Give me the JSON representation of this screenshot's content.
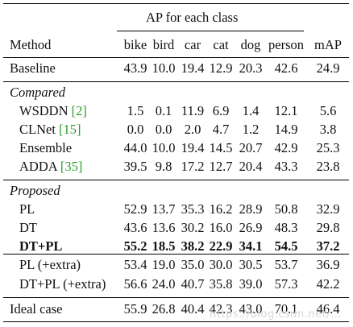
{
  "header": {
    "group_label": "AP for each class",
    "method_label": "Method",
    "columns": [
      "bike",
      "bird",
      "car",
      "cat",
      "dog",
      "person",
      "mAP"
    ]
  },
  "rows": [
    {
      "method": "Baseline",
      "values": [
        "43.9",
        "10.0",
        "19.4",
        "12.9",
        "20.3",
        "42.6",
        "24.9"
      ]
    },
    {
      "section": "Compared"
    },
    {
      "method": "WSDDN ",
      "ref": "[2]",
      "values": [
        "1.5",
        "0.1",
        "11.9",
        "6.9",
        "1.4",
        "12.1",
        "5.6"
      ]
    },
    {
      "method": "CLNet ",
      "ref": "[15]",
      "values": [
        "0.0",
        "0.0",
        "2.0",
        "4.7",
        "1.2",
        "14.9",
        "3.8"
      ]
    },
    {
      "method": "Ensemble",
      "values": [
        "44.0",
        "10.0",
        "19.4",
        "14.5",
        "20.7",
        "42.9",
        "25.3"
      ]
    },
    {
      "method": "ADDA ",
      "ref": "[35]",
      "values": [
        "39.5",
        "9.8",
        "17.2",
        "12.7",
        "20.4",
        "43.3",
        "23.8"
      ]
    },
    {
      "section": "Proposed"
    },
    {
      "method": "PL",
      "values": [
        "52.9",
        "13.7",
        "35.3",
        "16.2",
        "28.9",
        "50.8",
        "32.9"
      ]
    },
    {
      "method": "DT",
      "values": [
        "43.6",
        "13.6",
        "30.2",
        "16.0",
        "26.9",
        "48.3",
        "29.8"
      ]
    },
    {
      "method": "DT+PL",
      "bold": true,
      "values": [
        "55.2",
        "18.5",
        "38.2",
        "22.9",
        "34.1",
        "54.5",
        "37.2"
      ]
    },
    {
      "method": "PL (+extra)",
      "values": [
        "53.4",
        "19.0",
        "35.0",
        "30.0",
        "30.5",
        "53.7",
        "36.9"
      ]
    },
    {
      "method": "DT+PL (+extra)",
      "values": [
        "56.6",
        "24.0",
        "40.7",
        "35.8",
        "39.0",
        "57.3",
        "42.2"
      ]
    },
    {
      "method": "Ideal case",
      "values": [
        "55.9",
        "26.8",
        "40.4",
        "42.3",
        "43.0",
        "70.1",
        "46.4"
      ]
    }
  ],
  "watermark": "https://blog.csdn.net/..."
}
